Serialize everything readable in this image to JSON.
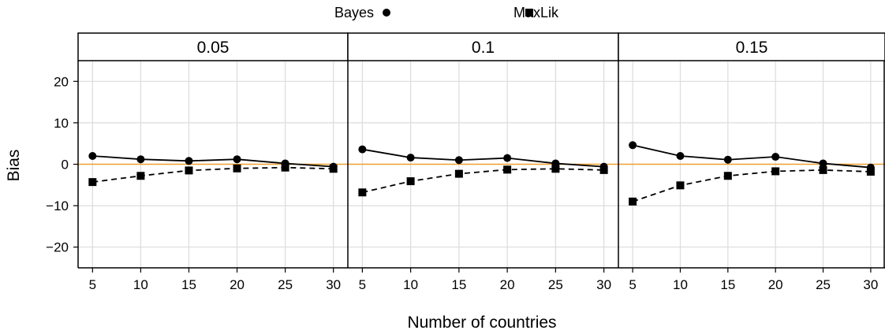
{
  "chart_data": {
    "type": "line",
    "xlabel": "Number of countries",
    "ylabel": "Bias",
    "x": [
      5,
      10,
      15,
      20,
      25,
      30
    ],
    "x_ticks": [
      5,
      10,
      15,
      20,
      25,
      30
    ],
    "y_ticks": [
      -20,
      -10,
      0,
      10,
      20
    ],
    "ylim": [
      -25,
      25
    ],
    "xlim": [
      3.5,
      31.5
    ],
    "reference_line": {
      "y": 0,
      "color": "#f0a030"
    },
    "grid": true,
    "legend_position": "top",
    "legend": [
      {
        "name": "Bayes",
        "marker": "circle",
        "line": "solid"
      },
      {
        "name": "MaxLik",
        "marker": "square",
        "line": "dashed"
      }
    ],
    "panels": [
      {
        "label": "0.05",
        "series": [
          {
            "name": "Bayes",
            "values": [
              2.0,
              1.2,
              0.8,
              1.2,
              0.2,
              -0.6
            ]
          },
          {
            "name": "MaxLik",
            "values": [
              -4.3,
              -2.8,
              -1.5,
              -1.0,
              -0.8,
              -1.1
            ]
          }
        ]
      },
      {
        "label": "0.1",
        "series": [
          {
            "name": "Bayes",
            "values": [
              3.6,
              1.6,
              1.0,
              1.5,
              0.2,
              -0.6
            ]
          },
          {
            "name": "MaxLik",
            "values": [
              -6.8,
              -4.1,
              -2.3,
              -1.3,
              -1.1,
              -1.4
            ]
          }
        ]
      },
      {
        "label": "0.15",
        "series": [
          {
            "name": "Bayes",
            "values": [
              4.6,
              2.0,
              1.1,
              1.8,
              0.2,
              -0.8
            ]
          },
          {
            "name": "MaxLik",
            "values": [
              -9.0,
              -5.1,
              -2.8,
              -1.7,
              -1.4,
              -1.8
            ]
          }
        ]
      }
    ]
  }
}
